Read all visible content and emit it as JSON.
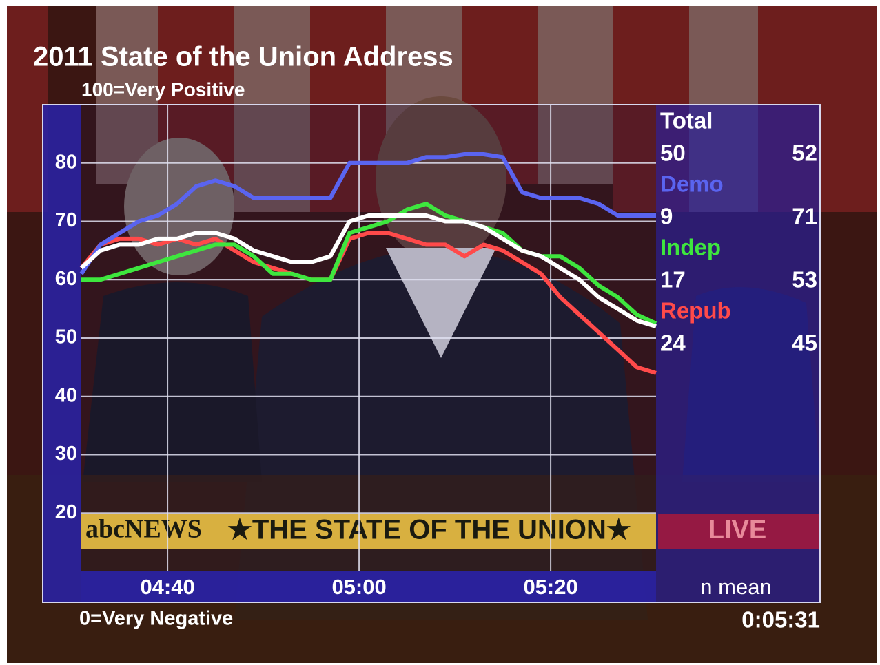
{
  "chart_data": {
    "type": "line",
    "title": "2011 State of the Union Address",
    "ylabel_top": "100=Very Positive",
    "ylabel_bottom": "0=Very Negative",
    "clock": "0:05:31",
    "summary_header": "n mean",
    "x": [
      271,
      273,
      275,
      277,
      279,
      281,
      283,
      285,
      287,
      289,
      291,
      293,
      295,
      297,
      299,
      301,
      303,
      305,
      307,
      309,
      311,
      313,
      315,
      317,
      319,
      321,
      323,
      325,
      327,
      329,
      331
    ],
    "xlim": [
      271,
      331
    ],
    "xticks": [
      {
        "value": 280,
        "label": "04:40"
      },
      {
        "value": 300,
        "label": "05:00"
      },
      {
        "value": 320,
        "label": "05:20"
      }
    ],
    "ylim": [
      10,
      90
    ],
    "yticks": [
      20,
      30,
      40,
      50,
      60,
      70,
      80
    ],
    "grid": true,
    "series": [
      {
        "name": "Total",
        "color": "#ffffff",
        "n": 50,
        "mean": 52,
        "values": [
          62,
          65,
          66,
          66,
          67,
          67,
          68,
          68,
          67,
          65,
          64,
          63,
          63,
          64,
          70,
          71,
          71,
          71,
          71,
          70,
          70,
          69,
          67,
          65,
          64,
          62,
          60,
          57,
          55,
          53,
          52
        ]
      },
      {
        "name": "Demo",
        "color": "#5a64f0",
        "n": 9,
        "mean": 71,
        "values": [
          61,
          66,
          68,
          70,
          71,
          73,
          76,
          77,
          76,
          74,
          74,
          74,
          74,
          74,
          80,
          80,
          80,
          80,
          81,
          81,
          81.5,
          81.5,
          81,
          75,
          74,
          74,
          74,
          73,
          71,
          71,
          71
        ]
      },
      {
        "name": "Indep",
        "color": "#3ee63e",
        "n": 17,
        "mean": 53,
        "values": [
          60,
          60,
          61,
          62,
          63,
          64,
          65,
          66,
          66,
          64,
          61,
          61,
          60,
          60,
          68,
          69,
          70,
          72,
          73,
          71,
          70,
          69,
          68,
          65,
          64,
          64,
          62,
          59,
          57,
          54,
          52.5
        ]
      },
      {
        "name": "Repub",
        "color": "#ff4a4a",
        "n": 24,
        "mean": 45,
        "values": [
          62,
          66,
          67,
          67,
          66,
          67,
          66,
          67,
          65,
          63,
          62,
          61,
          60,
          60,
          67,
          68,
          68,
          67,
          66,
          66,
          64,
          66,
          65,
          63,
          61,
          57,
          54,
          51,
          48,
          45,
          44
        ]
      }
    ]
  },
  "video": {
    "network": "abcNEWS",
    "program": "★THE STATE OF THE UNION★",
    "live": "LIVE"
  }
}
